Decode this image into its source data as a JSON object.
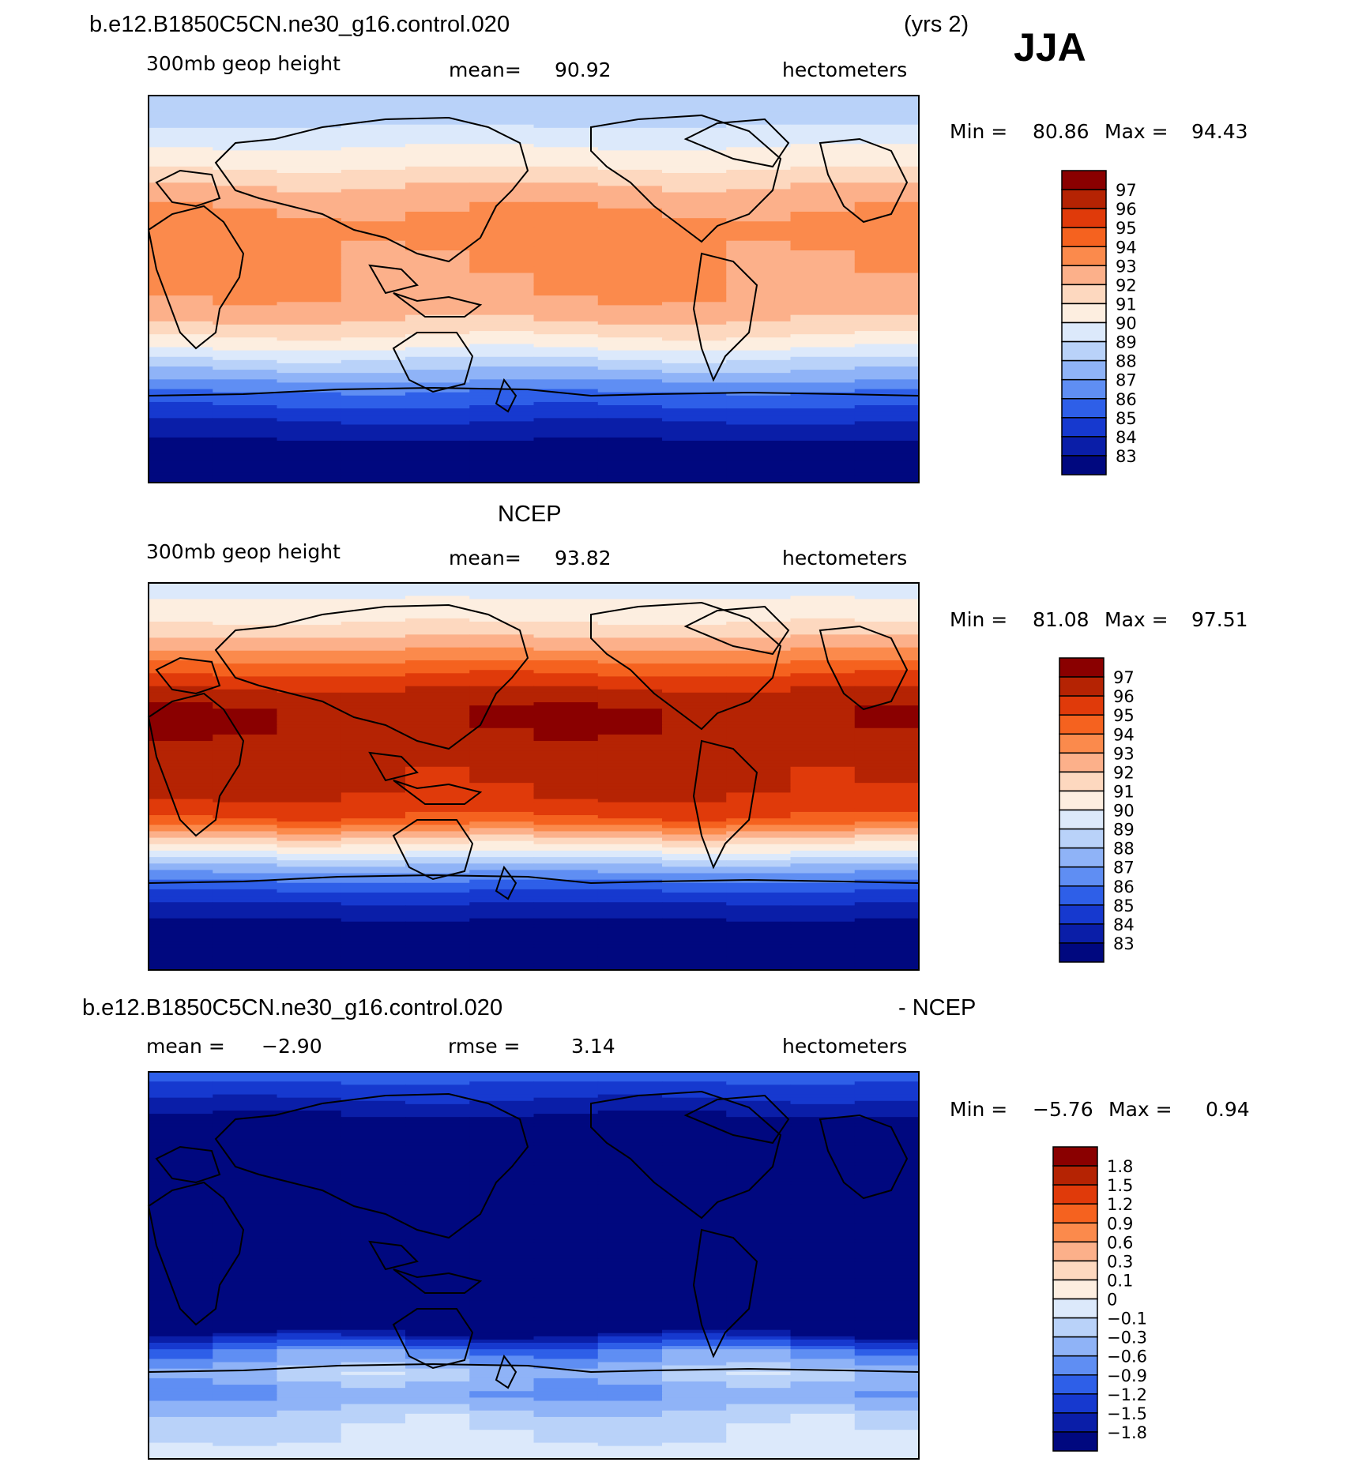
{
  "header": {
    "case_name": "b.e12.B1850C5CN.ne30_g16.control.020",
    "years": "(yrs 2)",
    "season": "JJA"
  },
  "colors": {
    "ocean_deep": "#00087f",
    "land_line": "#000000"
  },
  "chart_data": [
    {
      "type": "heatmap",
      "panel": "model",
      "title": "",
      "variable": "300mb geop height",
      "mean_label": "mean=",
      "mean": "90.92",
      "units": "hectometers",
      "min_label": "Min =",
      "min": "80.86",
      "max_label": "Max =",
      "max": "94.43",
      "x_range": [
        -180,
        180
      ],
      "y_range": [
        -90,
        90
      ],
      "levels": [
        "97",
        "96",
        "95",
        "94",
        "93",
        "92",
        "91",
        "90",
        "89",
        "88",
        "87",
        "86",
        "85",
        "84",
        "83"
      ],
      "colors": [
        "#8a0000",
        "#b52303",
        "#e03a0a",
        "#f5621f",
        "#fb8a4c",
        "#fcb08a",
        "#fdd8bf",
        "#fdeee0",
        "#dce9fb",
        "#b9d2f9",
        "#8fb3f7",
        "#5f8ef3",
        "#2e5fe8",
        "#1639cf",
        "#0a1ea8",
        "#00087f"
      ],
      "zonal_profile": [
        {
          "lat": 90,
          "value": 88.2
        },
        {
          "lat": 80,
          "value": 88.6
        },
        {
          "lat": 70,
          "value": 89.6
        },
        {
          "lat": 60,
          "value": 90.5
        },
        {
          "lat": 50,
          "value": 91.8
        },
        {
          "lat": 40,
          "value": 92.8
        },
        {
          "lat": 30,
          "value": 93.4
        },
        {
          "lat": 20,
          "value": 93.3
        },
        {
          "lat": 10,
          "value": 93.1
        },
        {
          "lat": 0,
          "value": 93.0
        },
        {
          "lat": -10,
          "value": 92.6
        },
        {
          "lat": -20,
          "value": 91.3
        },
        {
          "lat": -30,
          "value": 89.5
        },
        {
          "lat": -40,
          "value": 87.5
        },
        {
          "lat": -50,
          "value": 85.6
        },
        {
          "lat": -60,
          "value": 84.2
        },
        {
          "lat": -70,
          "value": 83.0
        },
        {
          "lat": -80,
          "value": 82.0
        },
        {
          "lat": -90,
          "value": 81.0
        }
      ]
    },
    {
      "type": "heatmap",
      "panel": "obs",
      "title": "NCEP",
      "variable": "300mb geop height",
      "mean_label": "mean=",
      "mean": "93.82",
      "units": "hectometers",
      "min_label": "Min =",
      "min": "81.08",
      "max_label": "Max =",
      "max": "97.51",
      "x_range": [
        -180,
        180
      ],
      "y_range": [
        -90,
        90
      ],
      "levels": [
        "97",
        "96",
        "95",
        "94",
        "93",
        "92",
        "91",
        "90",
        "89",
        "88",
        "87",
        "86",
        "85",
        "84",
        "83"
      ],
      "colors": [
        "#8a0000",
        "#b52303",
        "#e03a0a",
        "#f5621f",
        "#fb8a4c",
        "#fcb08a",
        "#fdd8bf",
        "#fdeee0",
        "#dce9fb",
        "#b9d2f9",
        "#8fb3f7",
        "#5f8ef3",
        "#2e5fe8",
        "#1639cf",
        "#0a1ea8",
        "#00087f"
      ],
      "zonal_profile": [
        {
          "lat": 90,
          "value": 89.5
        },
        {
          "lat": 80,
          "value": 90.2
        },
        {
          "lat": 70,
          "value": 91.2
        },
        {
          "lat": 60,
          "value": 92.8
        },
        {
          "lat": 50,
          "value": 94.6
        },
        {
          "lat": 40,
          "value": 96.2
        },
        {
          "lat": 30,
          "value": 97.1
        },
        {
          "lat": 20,
          "value": 96.8
        },
        {
          "lat": 10,
          "value": 96.4
        },
        {
          "lat": 0,
          "value": 96.3
        },
        {
          "lat": -10,
          "value": 96.0
        },
        {
          "lat": -20,
          "value": 94.8
        },
        {
          "lat": -30,
          "value": 91.5
        },
        {
          "lat": -40,
          "value": 88.3
        },
        {
          "lat": -50,
          "value": 85.6
        },
        {
          "lat": -60,
          "value": 83.8
        },
        {
          "lat": -70,
          "value": 82.6
        },
        {
          "lat": -80,
          "value": 81.6
        },
        {
          "lat": -90,
          "value": 81.2
        }
      ]
    },
    {
      "type": "heatmap",
      "panel": "diff",
      "title": "b.e12.B1850C5CN.ne30_g16.control.020",
      "title_suffix": "- NCEP",
      "variable": "",
      "mean_label": "mean =",
      "mean": "−2.90",
      "rmse_label": "rmse =",
      "rmse": "3.14",
      "units": "hectometers",
      "min_label": "Min =",
      "min": "−5.76",
      "max_label": "Max =",
      "max": "0.94",
      "x_range": [
        -180,
        180
      ],
      "y_range": [
        -90,
        90
      ],
      "levels": [
        "1.8",
        "1.5",
        "1.2",
        "0.9",
        "0.6",
        "0.3",
        "0.1",
        "0",
        "−0.1",
        "−0.3",
        "−0.6",
        "−0.9",
        "−1.2",
        "−1.5",
        "−1.8"
      ],
      "colors": [
        "#8a0000",
        "#b52303",
        "#e03a0a",
        "#f5621f",
        "#fb8a4c",
        "#fcb08a",
        "#fdd8bf",
        "#fdeee0",
        "#dce9fb",
        "#b9d2f9",
        "#8fb3f7",
        "#5f8ef3",
        "#2e5fe8",
        "#1639cf",
        "#0a1ea8",
        "#00087f"
      ],
      "zonal_profile": [
        {
          "lat": 90,
          "value": -1.0
        },
        {
          "lat": 80,
          "value": -1.4
        },
        {
          "lat": 70,
          "value": -1.8
        },
        {
          "lat": 60,
          "value": -2.5
        },
        {
          "lat": 50,
          "value": -3.0
        },
        {
          "lat": 40,
          "value": -3.4
        },
        {
          "lat": 30,
          "value": -3.7
        },
        {
          "lat": 20,
          "value": -3.5
        },
        {
          "lat": 10,
          "value": -3.3
        },
        {
          "lat": 0,
          "value": -3.3
        },
        {
          "lat": -10,
          "value": -3.4
        },
        {
          "lat": -20,
          "value": -3.5
        },
        {
          "lat": -30,
          "value": -2.0
        },
        {
          "lat": -40,
          "value": -0.8
        },
        {
          "lat": -50,
          "value": -0.3
        },
        {
          "lat": -60,
          "value": -0.6
        },
        {
          "lat": -70,
          "value": -0.2
        },
        {
          "lat": -80,
          "value": -0.1
        },
        {
          "lat": -90,
          "value": 0.0
        }
      ]
    }
  ]
}
